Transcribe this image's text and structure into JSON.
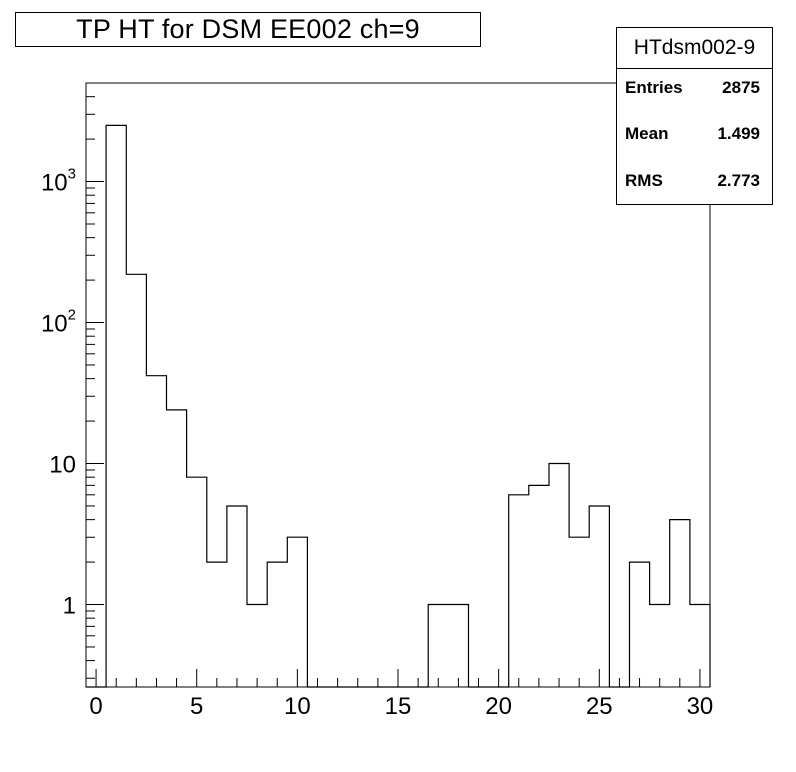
{
  "title": "TP HT for DSM EE002 ch=9",
  "stats": {
    "name": "HTdsm002-9",
    "entries_label": "Entries",
    "entries_value": "2875",
    "mean_label": "Mean",
    "mean_value": "1.499",
    "rms_label": "RMS",
    "rms_value": "2.773"
  },
  "chart_data": {
    "type": "bar",
    "histogram": true,
    "bin_width": 1,
    "x_start": 0,
    "x": [
      0,
      1,
      2,
      3,
      4,
      5,
      6,
      7,
      8,
      9,
      10,
      11,
      12,
      13,
      14,
      15,
      16,
      17,
      18,
      19,
      20,
      21,
      22,
      23,
      24,
      25,
      26,
      27,
      28,
      29,
      30
    ],
    "values": [
      0,
      2500,
      220,
      42,
      24,
      8,
      2,
      5,
      1,
      2,
      3,
      0,
      0,
      0,
      0,
      0,
      0,
      1,
      1,
      0,
      0,
      6,
      7,
      10,
      3,
      5,
      0,
      2,
      1,
      4,
      1
    ],
    "xlim": [
      -0.5,
      30.5
    ],
    "ylim": [
      0.26,
      5000
    ],
    "yscale": "log",
    "x_ticks": [
      "0",
      "5",
      "10",
      "15",
      "20",
      "25",
      "30"
    ],
    "y_ticks": [
      {
        "base": "1",
        "exp": ""
      },
      {
        "base": "10",
        "exp": ""
      },
      {
        "base": "10",
        "exp": "2"
      },
      {
        "base": "10",
        "exp": "3"
      }
    ],
    "title": "TP HT for DSM EE002 ch=9",
    "xlabel": "",
    "ylabel": "",
    "grid": false,
    "legend": "top-right"
  }
}
